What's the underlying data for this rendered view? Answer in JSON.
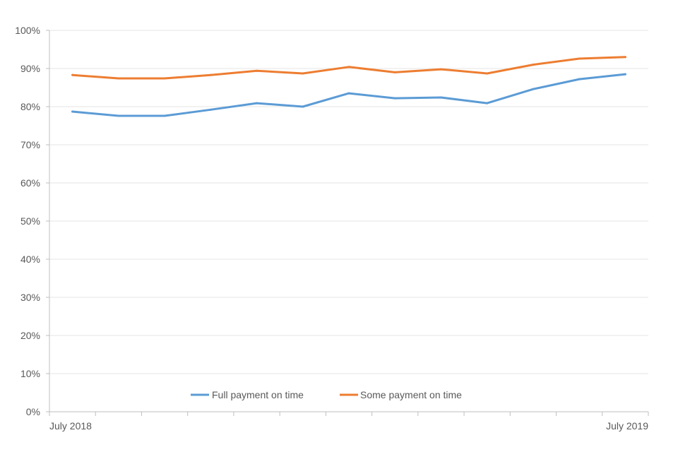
{
  "chart_data": {
    "type": "line",
    "title": "",
    "xlabel": "",
    "ylabel": "",
    "x": [
      "July 2018",
      "",
      "",
      "",
      "",
      "",
      "",
      "",
      "",
      "",
      "",
      "",
      "July 2019"
    ],
    "x_tick_labels": [
      {
        "index": 0,
        "label": "July 2018"
      },
      {
        "index": 12,
        "label": "July 2019"
      }
    ],
    "ylim": [
      0,
      100
    ],
    "y_ticks": [
      0,
      10,
      20,
      30,
      40,
      50,
      60,
      70,
      80,
      90,
      100
    ],
    "y_tick_labels": [
      "0%",
      "10%",
      "20%",
      "30%",
      "40%",
      "50%",
      "60%",
      "70%",
      "80%",
      "90%",
      "100%"
    ],
    "grid": true,
    "legend_position": "bottom",
    "series": [
      {
        "name": "Full payment on time",
        "color": "#5b9bd5",
        "values": [
          78.7,
          77.6,
          77.6,
          79.2,
          80.9,
          80.0,
          83.5,
          82.2,
          82.4,
          80.9,
          84.6,
          87.2,
          88.5
        ]
      },
      {
        "name": "Some payment on time",
        "color": "#ed7d31",
        "values": [
          88.3,
          87.4,
          87.4,
          88.3,
          89.4,
          88.7,
          90.4,
          89.0,
          89.8,
          88.7,
          91.0,
          92.6,
          93.0
        ]
      }
    ]
  }
}
